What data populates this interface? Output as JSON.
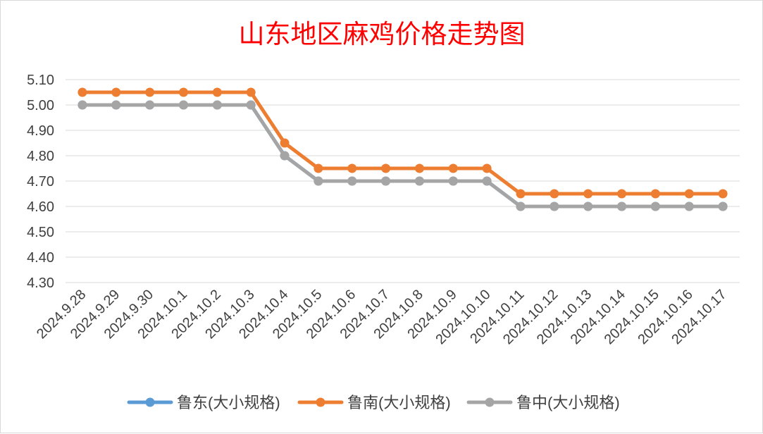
{
  "chart_data": {
    "type": "line",
    "title": "山东地区麻鸡价格走势图",
    "xlabel": "",
    "ylabel": "",
    "ylim": [
      4.3,
      5.1
    ],
    "yticks": [
      "5.10",
      "5.00",
      "4.90",
      "4.80",
      "4.70",
      "4.60",
      "4.50",
      "4.40",
      "4.30"
    ],
    "grid": true,
    "legend_position": "bottom",
    "categories": [
      "2024.9.28",
      "2024.9.29",
      "2024.9.30",
      "2024.10.1",
      "2024.10.2",
      "2024.10.3",
      "2024.10.4",
      "2024.10.5",
      "2024.10.6",
      "2024.10.7",
      "2024.10.8",
      "2024.10.9",
      "2024.10.10",
      "2024.10.11",
      "2024.10.12",
      "2024.10.13",
      "2024.10.14",
      "2024.10.15",
      "2024.10.16",
      "2024.10.17"
    ],
    "series": [
      {
        "name": "鲁东(大小规格)",
        "color": "#5b9bd5",
        "values": [
          5.0,
          5.0,
          5.0,
          5.0,
          5.0,
          5.0,
          4.8,
          4.7,
          4.7,
          4.7,
          4.7,
          4.7,
          4.7,
          4.6,
          4.6,
          4.6,
          4.6,
          4.6,
          4.6,
          4.6
        ]
      },
      {
        "name": "鲁南(大小规格)",
        "color": "#ed7d31",
        "values": [
          5.05,
          5.05,
          5.05,
          5.05,
          5.05,
          5.05,
          4.85,
          4.75,
          4.75,
          4.75,
          4.75,
          4.75,
          4.75,
          4.65,
          4.65,
          4.65,
          4.65,
          4.65,
          4.65,
          4.65
        ]
      },
      {
        "name": "鲁中(大小规格)",
        "color": "#a5a5a5",
        "values": [
          5.0,
          5.0,
          5.0,
          5.0,
          5.0,
          5.0,
          4.8,
          4.7,
          4.7,
          4.7,
          4.7,
          4.7,
          4.7,
          4.6,
          4.6,
          4.6,
          4.6,
          4.6,
          4.6,
          4.6
        ]
      }
    ]
  }
}
